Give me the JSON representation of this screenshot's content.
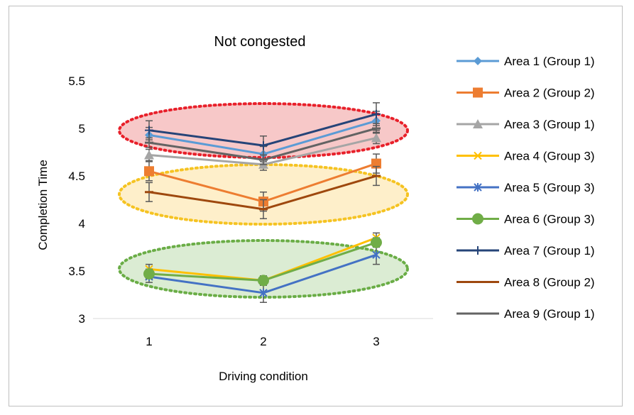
{
  "chart_data": {
    "type": "line",
    "title": "Not congested",
    "xlabel": "Driving condition",
    "ylabel": "Completion Time",
    "categories": [
      "1",
      "2",
      "3"
    ],
    "ylim": [
      3,
      5.5
    ],
    "yticks": [
      "3",
      "3.5",
      "4",
      "4.5",
      "5",
      "5.5"
    ],
    "grid": false,
    "legend_position": "right",
    "series": [
      {
        "name": "Area 1 (Group 1)",
        "color": "#5b9bd5",
        "marker": "diamond",
        "values": [
          4.93,
          4.73,
          5.08
        ],
        "err": [
          0.08,
          0.08,
          0.1
        ]
      },
      {
        "name": "Area 2 (Group 2)",
        "color": "#ed7d31",
        "marker": "square",
        "values": [
          4.55,
          4.23,
          4.63
        ],
        "err": [
          0.1,
          0.1,
          0.1
        ]
      },
      {
        "name": "Area 3 (Group 1)",
        "color": "#a5a5a5",
        "marker": "triangle",
        "values": [
          4.72,
          4.62,
          4.9
        ],
        "err": [
          0.06,
          0.06,
          0.06
        ]
      },
      {
        "name": "Area 4 (Group 3)",
        "color": "#ffc000",
        "marker": "x",
        "values": [
          3.52,
          3.4,
          3.85
        ],
        "err": [
          0.05,
          0.05,
          0.05
        ]
      },
      {
        "name": "Area 5 (Group 3)",
        "color": "#4472c4",
        "marker": "asterisk",
        "values": [
          3.44,
          3.27,
          3.67
        ],
        "err": [
          0.06,
          0.1,
          0.1
        ]
      },
      {
        "name": "Area 6 (Group 3)",
        "color": "#70ad47",
        "marker": "circle",
        "values": [
          3.47,
          3.4,
          3.8
        ],
        "err": [
          0.05,
          0.05,
          0.05
        ]
      },
      {
        "name": "Area 7 (Group 1)",
        "color": "#264478",
        "marker": "plus",
        "values": [
          4.98,
          4.82,
          5.15
        ],
        "err": [
          0.1,
          0.1,
          0.12
        ]
      },
      {
        "name": "Area 8 (Group 2)",
        "color": "#9e480e",
        "marker": "dash",
        "values": [
          4.33,
          4.15,
          4.5
        ],
        "err": [
          0.1,
          0.1,
          0.1
        ]
      },
      {
        "name": "Area 9 (Group 1)",
        "color": "#636363",
        "marker": "dash",
        "values": [
          4.85,
          4.67,
          5.0
        ],
        "err": [
          0.05,
          0.05,
          0.05
        ]
      }
    ],
    "highlight_ellipses": [
      {
        "group": "Group 1",
        "fill": "#f4b6b6",
        "stroke": "#e8202a"
      },
      {
        "group": "Group 2",
        "fill": "#fde9b8",
        "stroke": "#f5c322"
      },
      {
        "group": "Group 3",
        "fill": "#cfe5c4",
        "stroke": "#6aad46"
      }
    ]
  }
}
